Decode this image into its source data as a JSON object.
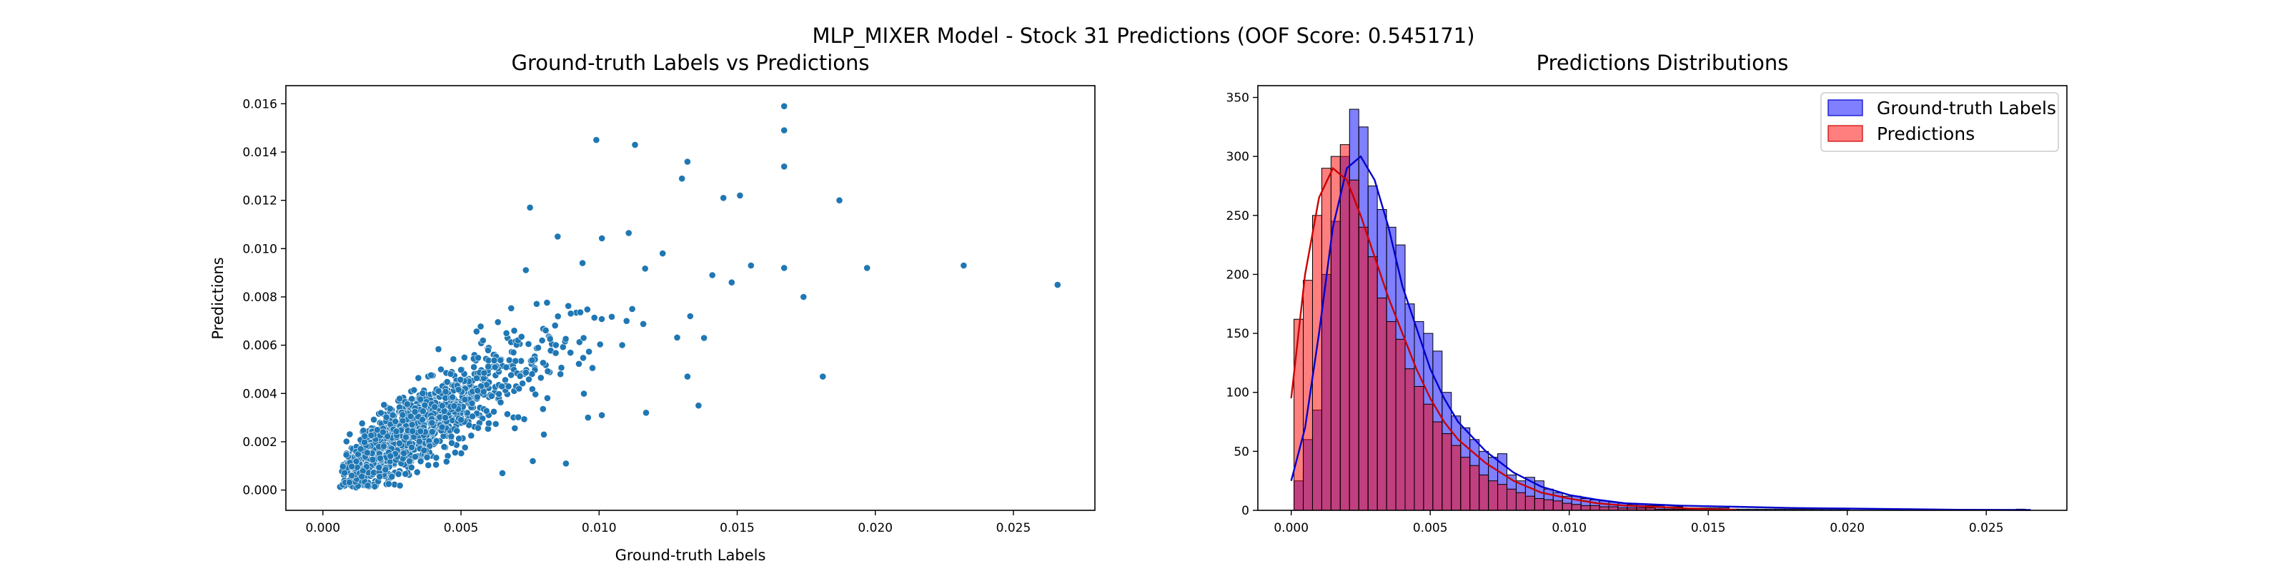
{
  "figure": {
    "suptitle": "MLP_MIXER Model - Stock 31 Predictions (OOF Score: 0.545171)"
  },
  "colors": {
    "scatter_point": "#1f77b4",
    "scatter_edge": "#ffffff",
    "ground_truth_fill": "#0000ff",
    "ground_truth_kde": "#0000cd",
    "predictions_fill": "#ff0000",
    "predictions_kde": "#cc0000",
    "bar_edge": "#000000",
    "legend_border": "#cccccc",
    "axis": "#000000"
  },
  "chart_data": [
    {
      "type": "scatter",
      "title": "Ground-truth Labels vs Predictions",
      "xlabel": "Ground-truth Labels",
      "ylabel": "Predictions",
      "xlim": [
        -0.00134,
        0.02795
      ],
      "ylim": [
        -0.00084,
        0.01675
      ],
      "xticks": [
        0.0,
        0.005,
        0.01,
        0.015,
        0.02,
        0.025
      ],
      "xtick_labels": [
        "0.000",
        "0.005",
        "0.010",
        "0.015",
        "0.020",
        "0.025"
      ],
      "yticks": [
        0.0,
        0.002,
        0.004,
        0.006,
        0.008,
        0.01,
        0.012,
        0.014,
        0.016
      ],
      "ytick_labels": [
        "0.000",
        "0.002",
        "0.004",
        "0.006",
        "0.008",
        "0.010",
        "0.012",
        "0.014",
        "0.016"
      ],
      "grid": false,
      "points": [
        [
          0.0167,
          0.0159
        ],
        [
          0.0167,
          0.0149
        ],
        [
          0.0167,
          0.0134
        ],
        [
          0.0187,
          0.012
        ],
        [
          0.0232,
          0.0093
        ],
        [
          0.0266,
          0.0085
        ],
        [
          0.0197,
          0.0092
        ],
        [
          0.0167,
          0.0092
        ],
        [
          0.0174,
          0.008
        ],
        [
          0.0181,
          0.0047
        ],
        [
          0.0155,
          0.0093
        ],
        [
          0.0151,
          0.0122
        ],
        [
          0.0145,
          0.0121
        ],
        [
          0.0132,
          0.0136
        ],
        [
          0.013,
          0.0129
        ],
        [
          0.0113,
          0.0143
        ],
        [
          0.0099,
          0.0145
        ],
        [
          0.0136,
          0.0035
        ],
        [
          0.0132,
          0.0047
        ],
        [
          0.0101,
          0.0031
        ],
        [
          0.0117,
          0.0032
        ],
        [
          0.0096,
          0.003
        ],
        [
          0.0076,
          0.0012
        ],
        [
          0.0088,
          0.0011
        ],
        [
          0.0065,
          0.0007
        ],
        [
          0.0075,
          0.0117
        ],
        [
          0.0085,
          0.0105
        ],
        [
          0.0094,
          0.0094
        ],
        [
          0.0141,
          0.0089
        ],
        [
          0.0123,
          0.0098
        ],
        [
          0.0133,
          0.0072
        ],
        [
          0.0138,
          0.0063
        ],
        [
          0.0112,
          0.0075
        ],
        [
          0.0086,
          0.0048
        ],
        [
          0.0071,
          0.0042
        ],
        [
          0.008,
          0.0023
        ],
        [
          0.0148,
          0.0086
        ]
      ],
      "points_cluster_generated": 2200
    },
    {
      "type": "bar",
      "title": "Predictions Distributions",
      "xlabel": "",
      "ylabel": "",
      "xlim": [
        -0.0012,
        0.0279
      ],
      "ylim": [
        0,
        360
      ],
      "xticks": [
        0.0,
        0.005,
        0.01,
        0.015,
        0.02,
        0.025
      ],
      "xtick_labels": [
        "0.000",
        "0.005",
        "0.010",
        "0.015",
        "0.020",
        "0.025"
      ],
      "yticks": [
        0,
        50,
        100,
        150,
        200,
        250,
        300,
        350
      ],
      "ytick_labels": [
        "0",
        "50",
        "100",
        "150",
        "200",
        "250",
        "300",
        "350"
      ],
      "grid": false,
      "legend": {
        "placement": "top-right",
        "entries": [
          "Ground-truth Labels",
          "Predictions"
        ]
      },
      "series": [
        {
          "name": "Ground-truth Labels",
          "bin_start": 0.0001,
          "bin_width": 0.000333,
          "counts": [
            25,
            60,
            85,
            200,
            245,
            300,
            340,
            325,
            275,
            255,
            240,
            225,
            175,
            160,
            150,
            135,
            100,
            80,
            70,
            60,
            50,
            45,
            48,
            30,
            25,
            28,
            25,
            18,
            15,
            12,
            12,
            10,
            9,
            8,
            7,
            6,
            5,
            5,
            4,
            4,
            3,
            3,
            2,
            2,
            2,
            2,
            2,
            1,
            1,
            1,
            1,
            1,
            1,
            1,
            1,
            1,
            1,
            1,
            1,
            1,
            0,
            0,
            0,
            0,
            0,
            0,
            0,
            0,
            0,
            0,
            0,
            0,
            0,
            0,
            0,
            0,
            0,
            0,
            1
          ]
        },
        {
          "name": "Predictions",
          "bin_start": 0.0001,
          "bin_width": 0.000333,
          "counts": [
            162,
            195,
            250,
            290,
            300,
            310,
            280,
            240,
            215,
            180,
            160,
            145,
            120,
            105,
            90,
            75,
            65,
            55,
            45,
            38,
            30,
            25,
            22,
            18,
            15,
            12,
            10,
            9,
            8,
            6,
            5,
            4,
            4,
            3,
            3,
            2,
            2,
            2,
            2,
            1,
            1,
            1,
            1,
            1,
            1,
            1,
            1,
            1
          ]
        }
      ],
      "kde": [
        {
          "name": "Ground-truth Labels",
          "x": [
            0.0,
            0.0005,
            0.001,
            0.0015,
            0.002,
            0.0025,
            0.003,
            0.0035,
            0.004,
            0.0045,
            0.005,
            0.0055,
            0.006,
            0.007,
            0.008,
            0.009,
            0.01,
            0.011,
            0.012,
            0.014,
            0.016,
            0.018,
            0.02,
            0.022,
            0.024,
            0.0266
          ],
          "y": [
            25,
            70,
            150,
            240,
            290,
            300,
            280,
            240,
            190,
            155,
            120,
            95,
            75,
            50,
            32,
            20,
            13,
            9,
            6,
            4,
            3,
            2,
            1.5,
            1,
            0.5,
            0.3
          ]
        },
        {
          "name": "Predictions",
          "x": [
            0.0,
            0.0005,
            0.001,
            0.0015,
            0.002,
            0.0025,
            0.003,
            0.0035,
            0.004,
            0.0045,
            0.005,
            0.0055,
            0.006,
            0.007,
            0.008,
            0.009,
            0.01,
            0.011,
            0.012,
            0.013,
            0.014,
            0.015,
            0.016
          ],
          "y": [
            95,
            200,
            265,
            290,
            280,
            250,
            215,
            180,
            150,
            120,
            95,
            75,
            60,
            40,
            25,
            15,
            10,
            6,
            4,
            3,
            2,
            1,
            0.5
          ]
        }
      ]
    }
  ]
}
